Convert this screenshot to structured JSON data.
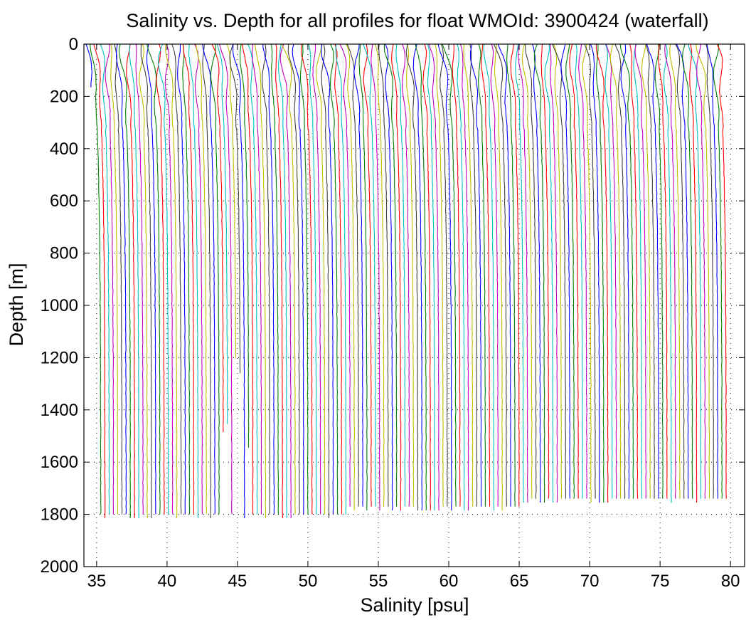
{
  "chart_data": {
    "type": "line",
    "title": "Salinity vs. Depth for all profiles for float WMOId: 3900424 (waterfall)",
    "xlabel": "Salinity [psu]",
    "ylabel": "Depth [m]",
    "xlim": [
      34.1,
      81
    ],
    "ylim": [
      2000,
      0
    ],
    "y_reversed": true,
    "grid": "dotted",
    "xticks": [
      35,
      40,
      45,
      50,
      55,
      60,
      65,
      70,
      75,
      80
    ],
    "xtick_labels": [
      "35",
      "40",
      "45",
      "50",
      "55",
      "60",
      "65",
      "70",
      "75",
      "80"
    ],
    "yticks": [
      0,
      200,
      400,
      600,
      800,
      1000,
      1200,
      1400,
      1600,
      1800,
      2000
    ],
    "ytick_labels": [
      "0",
      "200",
      "400",
      "600",
      "800",
      "1000",
      "1200",
      "1400",
      "1600",
      "1800",
      "2000"
    ],
    "waterfall": {
      "profile_count": 150,
      "offset_per_profile": 0.3,
      "base_salinity_deep": 35.0,
      "base_salinity_surface": 34.4,
      "typical_max_depth": 1800,
      "short_profiles": [
        {
          "index": 0,
          "max_depth": 170
        },
        {
          "index": 33,
          "max_depth": 1200
        },
        {
          "index": 34,
          "max_depth": 1260
        },
        {
          "index": 30,
          "max_depth": 1490
        },
        {
          "index": 31,
          "max_depth": 1460
        },
        {
          "index": 36,
          "max_depth": 1550
        }
      ]
    },
    "series_colors": [
      "#0000ff",
      "#008000",
      "#ff0000",
      "#00bfbf",
      "#bf00bf",
      "#bfbf00",
      "#404040"
    ]
  }
}
